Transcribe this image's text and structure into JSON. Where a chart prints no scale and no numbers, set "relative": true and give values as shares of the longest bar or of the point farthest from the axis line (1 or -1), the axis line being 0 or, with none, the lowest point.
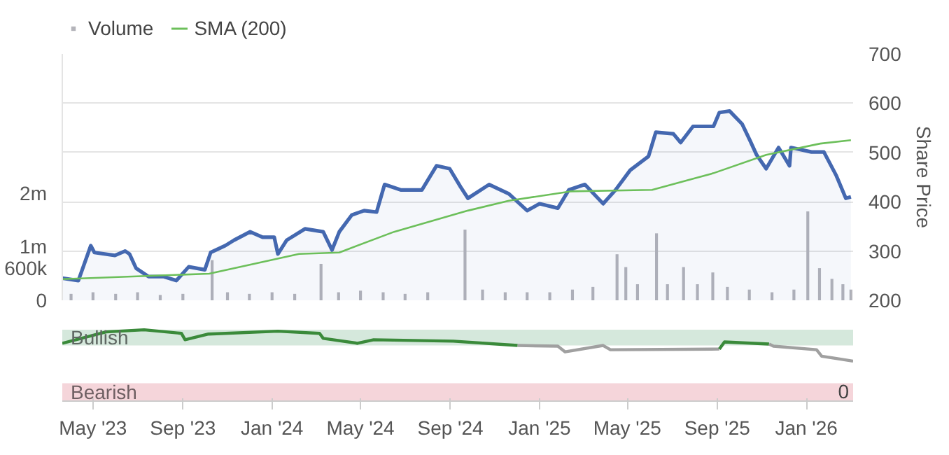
{
  "chart_data": [
    {
      "type": "line",
      "ylabel": "Share Price",
      "legend": "top left",
      "grid": "y",
      "tick_labels": "y",
      "xlim": [
        "2023-03-20",
        "2026-03-06"
      ],
      "ylim": [
        200,
        700
      ],
      "yticks": [
        200,
        300,
        400,
        500,
        600,
        700
      ],
      "y2lim": [
        0,
        4600000
      ],
      "y2ticks": [
        {
          "value": 0,
          "label": "0"
        },
        {
          "value": 600000,
          "label": "600k"
        },
        {
          "value": 1000000,
          "label": "1m"
        },
        {
          "value": 2000000,
          "label": "2m"
        }
      ],
      "series": [
        {
          "type": "bar",
          "name": "Volume",
          "color": "#b4b4ba",
          "axis": "y2",
          "x": [
            "2023-04-01",
            "2023-05-01",
            "2023-06-01",
            "2023-07-01",
            "2023-08-01",
            "2023-09-01",
            "2023-10-11",
            "2023-11-01",
            "2023-12-01",
            "2024-01-01",
            "2024-02-01",
            "2024-03-08",
            "2024-04-01",
            "2024-05-01",
            "2024-06-01",
            "2024-07-01",
            "2024-08-01",
            "2024-09-21",
            "2024-10-15",
            "2024-11-15",
            "2024-12-15",
            "2025-01-15",
            "2025-02-15",
            "2025-03-15",
            "2025-04-17",
            "2025-04-29",
            "2025-05-15",
            "2025-06-10",
            "2025-06-25",
            "2025-07-17",
            "2025-08-05",
            "2025-08-26",
            "2025-09-15",
            "2025-10-15",
            "2025-11-15",
            "2025-12-15",
            "2026-01-03",
            "2026-01-19",
            "2026-02-05",
            "2026-02-20",
            "2026-03-03"
          ],
          "values": [
            120000,
            150000,
            120000,
            150000,
            100000,
            120000,
            750000,
            150000,
            120000,
            150000,
            120000,
            680000,
            150000,
            180000,
            150000,
            120000,
            150000,
            1320000,
            200000,
            150000,
            150000,
            150000,
            200000,
            250000,
            860000,
            620000,
            300000,
            1250000,
            300000,
            620000,
            300000,
            520000,
            250000,
            200000,
            150000,
            200000,
            1660000,
            600000,
            400000,
            300000,
            200000
          ]
        },
        {
          "type": "area",
          "color": "#4468b0",
          "x": [
            "2023-03-20",
            "2023-04-11",
            "2023-04-28",
            "2023-05-03",
            "2023-05-31",
            "2023-06-14",
            "2023-06-20",
            "2023-06-29",
            "2023-07-16",
            "2023-08-06",
            "2023-08-23",
            "2023-09-09",
            "2023-10-01",
            "2023-10-09",
            "2023-10-29",
            "2023-11-10",
            "2023-12-02",
            "2023-12-19",
            "2024-01-04",
            "2024-01-09",
            "2024-01-21",
            "2024-02-15",
            "2024-03-11",
            "2024-03-23",
            "2024-04-02",
            "2024-04-19",
            "2024-05-06",
            "2024-05-23",
            "2024-06-03",
            "2024-06-25",
            "2024-07-24",
            "2024-08-13",
            "2024-08-31",
            "2024-09-15",
            "2024-09-25",
            "2024-10-24",
            "2024-11-20",
            "2024-12-15",
            "2025-01-01",
            "2025-01-26",
            "2025-02-10",
            "2025-03-04",
            "2025-03-29",
            "2025-04-15",
            "2025-05-05",
            "2025-05-30",
            "2025-06-09",
            "2025-07-03",
            "2025-07-13",
            "2025-07-30",
            "2025-08-27",
            "2025-09-04",
            "2025-09-18",
            "2025-10-05",
            "2025-10-16",
            "2025-10-25",
            "2025-11-07",
            "2025-11-24",
            "2025-12-09",
            "2025-12-11",
            "2026-01-08",
            "2026-01-25",
            "2026-02-11",
            "2026-02-24",
            "2026-03-03"
          ],
          "values": [
            245,
            240,
            311,
            297,
            291,
            300,
            294,
            265,
            248,
            248,
            240,
            268,
            262,
            297,
            311,
            322,
            339,
            328,
            328,
            294,
            322,
            345,
            339,
            302,
            339,
            373,
            382,
            379,
            435,
            424,
            424,
            473,
            467,
            430,
            407,
            435,
            416,
            382,
            396,
            387,
            424,
            435,
            396,
            424,
            464,
            492,
            541,
            538,
            520,
            553,
            553,
            581,
            584,
            558,
            524,
            495,
            467,
            510,
            473,
            510,
            501,
            501,
            453,
            407,
            410
          ]
        },
        {
          "type": "line",
          "name": "SMA (200)",
          "color": "#6cbf5a",
          "x": [
            "2023-03-20",
            "2023-10-07",
            "2024-02-07",
            "2024-04-02",
            "2024-06-16",
            "2024-09-25",
            "2024-11-20",
            "2025-02-12",
            "2025-06-04",
            "2025-08-27",
            "2025-11-07",
            "2026-01-20",
            "2026-03-03"
          ],
          "values": [
            243,
            254,
            294,
            297,
            339,
            382,
            402,
            421,
            424,
            458,
            495,
            518,
            525
          ]
        }
      ]
    },
    {
      "type": "line",
      "relative": true,
      "tick_labels": "x",
      "annotations": [
        "0"
      ],
      "xlim": [
        "2023-03-20",
        "2026-03-06"
      ],
      "xticks": [
        {
          "value": "2023-05-01",
          "label": "May '23"
        },
        {
          "value": "2023-09-01",
          "label": "Sep '23"
        },
        {
          "value": "2024-01-01",
          "label": "Jan '24"
        },
        {
          "value": "2024-05-01",
          "label": "May '24"
        },
        {
          "value": "2024-09-01",
          "label": "Sep '24"
        },
        {
          "value": "2025-01-01",
          "label": "Jan '25"
        },
        {
          "value": "2025-05-01",
          "label": "May '25"
        },
        {
          "value": "2025-09-01",
          "label": "Sep '25"
        },
        {
          "value": "2026-01-01",
          "label": "Jan '26"
        }
      ],
      "bands": [
        {
          "axis": "y",
          "from": 0.78,
          "to": 1.0,
          "label": "Bullish",
          "color": "#d5e8dc"
        },
        {
          "axis": "y",
          "from": 0,
          "to": 0.25,
          "label": "Bearish",
          "color": "#f5d5da"
        }
      ],
      "series": [
        {
          "color": "#3a8a3a",
          "x": [
            "2023-03-20",
            "2023-05-19",
            "2023-07-10",
            "2023-08-30",
            "2023-09-04",
            "2023-10-06",
            "2024-01-09",
            "2024-03-06",
            "2024-03-11",
            "2024-04-27",
            "2024-05-19",
            "2024-09-05",
            "2024-12-02"
          ],
          "values": [
            0.81,
            0.97,
            1.0,
            0.95,
            0.86,
            0.94,
            0.98,
            0.95,
            0.88,
            0.81,
            0.86,
            0.84,
            0.78
          ]
        },
        {
          "color": "#a0a0a0",
          "x": [
            "2024-12-02",
            "2025-01-26",
            "2025-02-05",
            "2025-03-29",
            "2025-04-08",
            "2025-09-04"
          ],
          "values": [
            0.78,
            0.77,
            0.69,
            0.78,
            0.72,
            0.73
          ]
        },
        {
          "color": "#3a8a3a",
          "x": [
            "2025-09-04",
            "2025-09-11",
            "2025-11-11"
          ],
          "values": [
            0.73,
            0.83,
            0.8
          ]
        },
        {
          "color": "#a0a0a0",
          "x": [
            "2025-11-11",
            "2025-11-17",
            "2026-01-15",
            "2026-01-22",
            "2026-03-06"
          ],
          "values": [
            0.8,
            0.77,
            0.72,
            0.63,
            0.56
          ]
        }
      ]
    }
  ]
}
